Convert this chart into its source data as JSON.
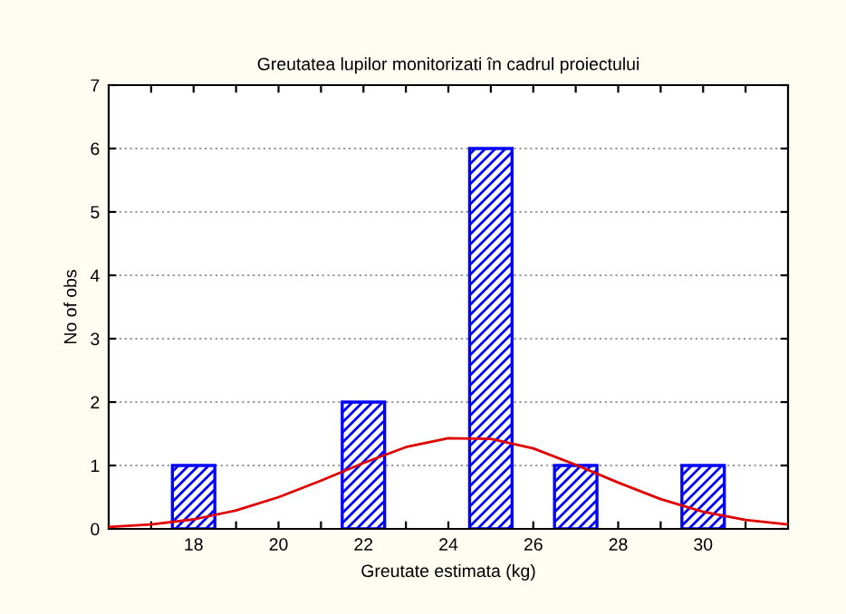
{
  "chart_data": {
    "type": "histogram",
    "title": "Greutatea lupilor monitorizati în cadrul proiectului",
    "xlabel": "Greutate estimata (kg)",
    "ylabel": "No of obs",
    "bins": [
      17.5,
      18.5,
      19.5,
      20.5,
      21.5,
      22.5,
      23.5,
      24.5,
      25.5,
      26.5,
      27.5,
      28.5,
      29.5,
      30.5
    ],
    "values": [
      1,
      0,
      0,
      0,
      2,
      0,
      0,
      6,
      0,
      1,
      0,
      0,
      1
    ],
    "color": "#0000ff",
    "series": [
      {
        "type": "line",
        "color": "#e00000",
        "x": [
          16,
          17,
          18,
          19,
          20,
          21,
          22,
          23,
          24,
          25,
          26,
          27,
          28,
          29,
          30,
          31,
          32
        ],
        "values": [
          0.03,
          0.07,
          0.15,
          0.29,
          0.5,
          0.76,
          1.04,
          1.29,
          1.43,
          1.42,
          1.27,
          1.01,
          0.73,
          0.47,
          0.27,
          0.14,
          0.07
        ]
      }
    ],
    "xlim": [
      16,
      32
    ],
    "ylim": [
      0,
      7
    ],
    "xticks": [
      {
        "value": 17,
        "label": null
      },
      18,
      {
        "value": 19,
        "label": null
      },
      20,
      {
        "value": 21,
        "label": null
      },
      22,
      {
        "value": 23,
        "label": null
      },
      24,
      {
        "value": 25,
        "label": null
      },
      26,
      {
        "value": 27,
        "label": null
      },
      28,
      {
        "value": 29,
        "label": null
      },
      30,
      {
        "value": 31,
        "label": null
      }
    ],
    "yticks": [
      0,
      1,
      2,
      3,
      4,
      5,
      6,
      7
    ],
    "grid": "y",
    "legend": false
  }
}
